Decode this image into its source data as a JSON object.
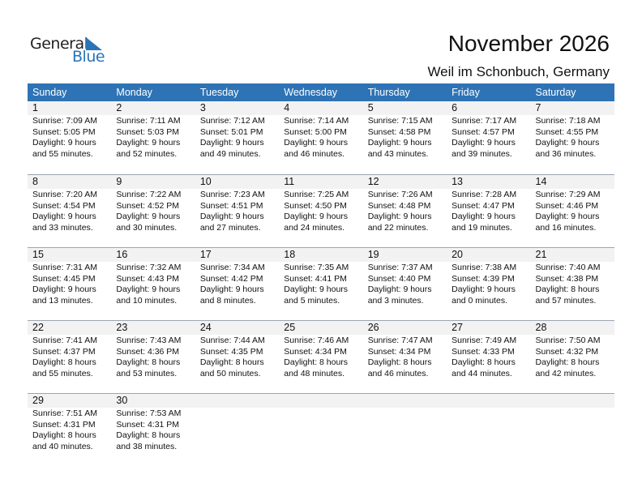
{
  "logo": {
    "line1": "General",
    "line2": "Blue"
  },
  "title": "November 2026",
  "subtitle": "Weil im Schonbuch, Germany",
  "colors": {
    "header": "#2e73b5",
    "accent": "#2a73b8",
    "daybar": "#f2f2f2"
  },
  "weekdays": [
    "Sunday",
    "Monday",
    "Tuesday",
    "Wednesday",
    "Thursday",
    "Friday",
    "Saturday"
  ],
  "weeks": [
    [
      {
        "day": "1",
        "sunrise": "Sunrise: 7:09 AM",
        "sunset": "Sunset: 5:05 PM",
        "daylight": "Daylight: 9 hours",
        "minutes": "and 55 minutes."
      },
      {
        "day": "2",
        "sunrise": "Sunrise: 7:11 AM",
        "sunset": "Sunset: 5:03 PM",
        "daylight": "Daylight: 9 hours",
        "minutes": "and 52 minutes."
      },
      {
        "day": "3",
        "sunrise": "Sunrise: 7:12 AM",
        "sunset": "Sunset: 5:01 PM",
        "daylight": "Daylight: 9 hours",
        "minutes": "and 49 minutes."
      },
      {
        "day": "4",
        "sunrise": "Sunrise: 7:14 AM",
        "sunset": "Sunset: 5:00 PM",
        "daylight": "Daylight: 9 hours",
        "minutes": "and 46 minutes."
      },
      {
        "day": "5",
        "sunrise": "Sunrise: 7:15 AM",
        "sunset": "Sunset: 4:58 PM",
        "daylight": "Daylight: 9 hours",
        "minutes": "and 43 minutes."
      },
      {
        "day": "6",
        "sunrise": "Sunrise: 7:17 AM",
        "sunset": "Sunset: 4:57 PM",
        "daylight": "Daylight: 9 hours",
        "minutes": "and 39 minutes."
      },
      {
        "day": "7",
        "sunrise": "Sunrise: 7:18 AM",
        "sunset": "Sunset: 4:55 PM",
        "daylight": "Daylight: 9 hours",
        "minutes": "and 36 minutes."
      }
    ],
    [
      {
        "day": "8",
        "sunrise": "Sunrise: 7:20 AM",
        "sunset": "Sunset: 4:54 PM",
        "daylight": "Daylight: 9 hours",
        "minutes": "and 33 minutes."
      },
      {
        "day": "9",
        "sunrise": "Sunrise: 7:22 AM",
        "sunset": "Sunset: 4:52 PM",
        "daylight": "Daylight: 9 hours",
        "minutes": "and 30 minutes."
      },
      {
        "day": "10",
        "sunrise": "Sunrise: 7:23 AM",
        "sunset": "Sunset: 4:51 PM",
        "daylight": "Daylight: 9 hours",
        "minutes": "and 27 minutes."
      },
      {
        "day": "11",
        "sunrise": "Sunrise: 7:25 AM",
        "sunset": "Sunset: 4:50 PM",
        "daylight": "Daylight: 9 hours",
        "minutes": "and 24 minutes."
      },
      {
        "day": "12",
        "sunrise": "Sunrise: 7:26 AM",
        "sunset": "Sunset: 4:48 PM",
        "daylight": "Daylight: 9 hours",
        "minutes": "and 22 minutes."
      },
      {
        "day": "13",
        "sunrise": "Sunrise: 7:28 AM",
        "sunset": "Sunset: 4:47 PM",
        "daylight": "Daylight: 9 hours",
        "minutes": "and 19 minutes."
      },
      {
        "day": "14",
        "sunrise": "Sunrise: 7:29 AM",
        "sunset": "Sunset: 4:46 PM",
        "daylight": "Daylight: 9 hours",
        "minutes": "and 16 minutes."
      }
    ],
    [
      {
        "day": "15",
        "sunrise": "Sunrise: 7:31 AM",
        "sunset": "Sunset: 4:45 PM",
        "daylight": "Daylight: 9 hours",
        "minutes": "and 13 minutes."
      },
      {
        "day": "16",
        "sunrise": "Sunrise: 7:32 AM",
        "sunset": "Sunset: 4:43 PM",
        "daylight": "Daylight: 9 hours",
        "minutes": "and 10 minutes."
      },
      {
        "day": "17",
        "sunrise": "Sunrise: 7:34 AM",
        "sunset": "Sunset: 4:42 PM",
        "daylight": "Daylight: 9 hours",
        "minutes": "and 8 minutes."
      },
      {
        "day": "18",
        "sunrise": "Sunrise: 7:35 AM",
        "sunset": "Sunset: 4:41 PM",
        "daylight": "Daylight: 9 hours",
        "minutes": "and 5 minutes."
      },
      {
        "day": "19",
        "sunrise": "Sunrise: 7:37 AM",
        "sunset": "Sunset: 4:40 PM",
        "daylight": "Daylight: 9 hours",
        "minutes": "and 3 minutes."
      },
      {
        "day": "20",
        "sunrise": "Sunrise: 7:38 AM",
        "sunset": "Sunset: 4:39 PM",
        "daylight": "Daylight: 9 hours",
        "minutes": "and 0 minutes."
      },
      {
        "day": "21",
        "sunrise": "Sunrise: 7:40 AM",
        "sunset": "Sunset: 4:38 PM",
        "daylight": "Daylight: 8 hours",
        "minutes": "and 57 minutes."
      }
    ],
    [
      {
        "day": "22",
        "sunrise": "Sunrise: 7:41 AM",
        "sunset": "Sunset: 4:37 PM",
        "daylight": "Daylight: 8 hours",
        "minutes": "and 55 minutes."
      },
      {
        "day": "23",
        "sunrise": "Sunrise: 7:43 AM",
        "sunset": "Sunset: 4:36 PM",
        "daylight": "Daylight: 8 hours",
        "minutes": "and 53 minutes."
      },
      {
        "day": "24",
        "sunrise": "Sunrise: 7:44 AM",
        "sunset": "Sunset: 4:35 PM",
        "daylight": "Daylight: 8 hours",
        "minutes": "and 50 minutes."
      },
      {
        "day": "25",
        "sunrise": "Sunrise: 7:46 AM",
        "sunset": "Sunset: 4:34 PM",
        "daylight": "Daylight: 8 hours",
        "minutes": "and 48 minutes."
      },
      {
        "day": "26",
        "sunrise": "Sunrise: 7:47 AM",
        "sunset": "Sunset: 4:34 PM",
        "daylight": "Daylight: 8 hours",
        "minutes": "and 46 minutes."
      },
      {
        "day": "27",
        "sunrise": "Sunrise: 7:49 AM",
        "sunset": "Sunset: 4:33 PM",
        "daylight": "Daylight: 8 hours",
        "minutes": "and 44 minutes."
      },
      {
        "day": "28",
        "sunrise": "Sunrise: 7:50 AM",
        "sunset": "Sunset: 4:32 PM",
        "daylight": "Daylight: 8 hours",
        "minutes": "and 42 minutes."
      }
    ],
    [
      {
        "day": "29",
        "sunrise": "Sunrise: 7:51 AM",
        "sunset": "Sunset: 4:31 PM",
        "daylight": "Daylight: 8 hours",
        "minutes": "and 40 minutes."
      },
      {
        "day": "30",
        "sunrise": "Sunrise: 7:53 AM",
        "sunset": "Sunset: 4:31 PM",
        "daylight": "Daylight: 8 hours",
        "minutes": "and 38 minutes."
      },
      null,
      null,
      null,
      null,
      null
    ]
  ]
}
